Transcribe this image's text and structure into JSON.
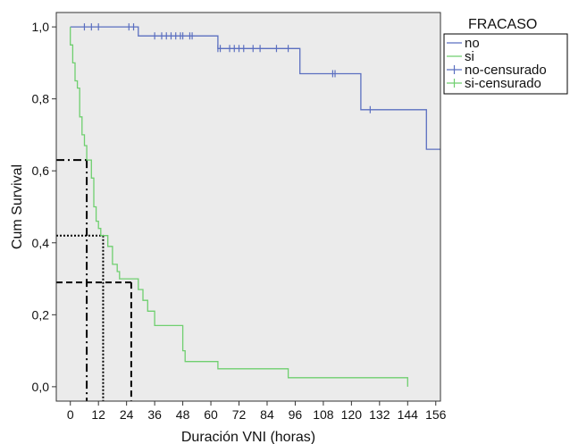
{
  "chart_data": {
    "type": "line",
    "title": "",
    "xlabel": "Duración VNI (horas)",
    "ylabel": "Cum Survival",
    "xlim": [
      -6,
      158
    ],
    "ylim": [
      -0.04,
      1.04
    ],
    "x_ticks": [
      0,
      12,
      24,
      36,
      48,
      60,
      72,
      84,
      96,
      108,
      120,
      132,
      144,
      156
    ],
    "y_ticks": [
      0.0,
      0.2,
      0.4,
      0.6,
      0.8,
      1.0
    ],
    "y_tick_labels": [
      "0,0",
      "0,2",
      "0,4",
      "0,6",
      "0,8",
      "1,0"
    ],
    "grid": false,
    "legend": {
      "title": "FRACASO",
      "position": "top-right",
      "entries": [
        "no",
        "si",
        "no-censurado",
        "si-censurado"
      ]
    },
    "series": [
      {
        "name": "no",
        "color": "#5b6fc0",
        "step_points": [
          [
            0,
            1.0
          ],
          [
            29,
            1.0
          ],
          [
            29,
            0.975
          ],
          [
            63,
            0.975
          ],
          [
            63,
            0.94
          ],
          [
            98,
            0.94
          ],
          [
            98,
            0.87
          ],
          [
            124,
            0.87
          ],
          [
            124,
            0.77
          ],
          [
            152,
            0.77
          ],
          [
            152,
            0.66
          ],
          [
            158,
            0.66
          ]
        ]
      },
      {
        "name": "si",
        "color": "#6fcf6f",
        "step_points": [
          [
            0,
            1.0
          ],
          [
            0,
            0.95
          ],
          [
            1,
            0.95
          ],
          [
            1,
            0.9
          ],
          [
            2,
            0.9
          ],
          [
            2,
            0.85
          ],
          [
            3,
            0.85
          ],
          [
            3,
            0.83
          ],
          [
            4,
            0.83
          ],
          [
            4,
            0.75
          ],
          [
            5,
            0.75
          ],
          [
            5,
            0.7
          ],
          [
            6,
            0.7
          ],
          [
            6,
            0.67
          ],
          [
            7,
            0.67
          ],
          [
            7,
            0.63
          ],
          [
            9,
            0.63
          ],
          [
            9,
            0.58
          ],
          [
            10,
            0.58
          ],
          [
            10,
            0.5
          ],
          [
            11,
            0.5
          ],
          [
            11,
            0.46
          ],
          [
            12,
            0.46
          ],
          [
            12,
            0.44
          ],
          [
            13,
            0.44
          ],
          [
            13,
            0.42
          ],
          [
            16,
            0.42
          ],
          [
            16,
            0.39
          ],
          [
            18,
            0.39
          ],
          [
            18,
            0.34
          ],
          [
            20,
            0.34
          ],
          [
            20,
            0.32
          ],
          [
            21,
            0.32
          ],
          [
            21,
            0.3
          ],
          [
            29,
            0.3
          ],
          [
            29,
            0.27
          ],
          [
            31,
            0.27
          ],
          [
            31,
            0.24
          ],
          [
            33,
            0.24
          ],
          [
            33,
            0.21
          ],
          [
            36,
            0.21
          ],
          [
            36,
            0.17
          ],
          [
            48,
            0.17
          ],
          [
            48,
            0.1
          ],
          [
            49,
            0.1
          ],
          [
            49,
            0.07
          ],
          [
            51,
            0.07
          ],
          [
            51,
            0.07
          ],
          [
            63,
            0.07
          ],
          [
            63,
            0.05
          ],
          [
            93,
            0.05
          ],
          [
            93,
            0.025
          ],
          [
            144,
            0.025
          ],
          [
            144,
            0.0
          ]
        ]
      },
      {
        "name": "no-censurado",
        "color": "#5b6fc0",
        "censor_points": [
          [
            6,
            1.0
          ],
          [
            9,
            1.0
          ],
          [
            12,
            1.0
          ],
          [
            25,
            1.0
          ],
          [
            27,
            1.0
          ],
          [
            36,
            0.975
          ],
          [
            39,
            0.975
          ],
          [
            41,
            0.975
          ],
          [
            43,
            0.975
          ],
          [
            45,
            0.975
          ],
          [
            47,
            0.975
          ],
          [
            48,
            0.975
          ],
          [
            51,
            0.975
          ],
          [
            52,
            0.975
          ],
          [
            63,
            0.94
          ],
          [
            64,
            0.94
          ],
          [
            68,
            0.94
          ],
          [
            70,
            0.94
          ],
          [
            72,
            0.94
          ],
          [
            74,
            0.94
          ],
          [
            78,
            0.94
          ],
          [
            81,
            0.94
          ],
          [
            88,
            0.94
          ],
          [
            93,
            0.94
          ],
          [
            112,
            0.87
          ],
          [
            113,
            0.87
          ],
          [
            128,
            0.77
          ]
        ]
      },
      {
        "name": "si-censurado",
        "color": "#6fcf6f",
        "censor_points": []
      }
    ],
    "annotations": [
      {
        "style": "dash-dot",
        "x": 7,
        "y": 0.63
      },
      {
        "style": "dotted",
        "x": 14,
        "y": 0.42
      },
      {
        "style": "dashed",
        "x": 26,
        "y": 0.29
      }
    ]
  }
}
